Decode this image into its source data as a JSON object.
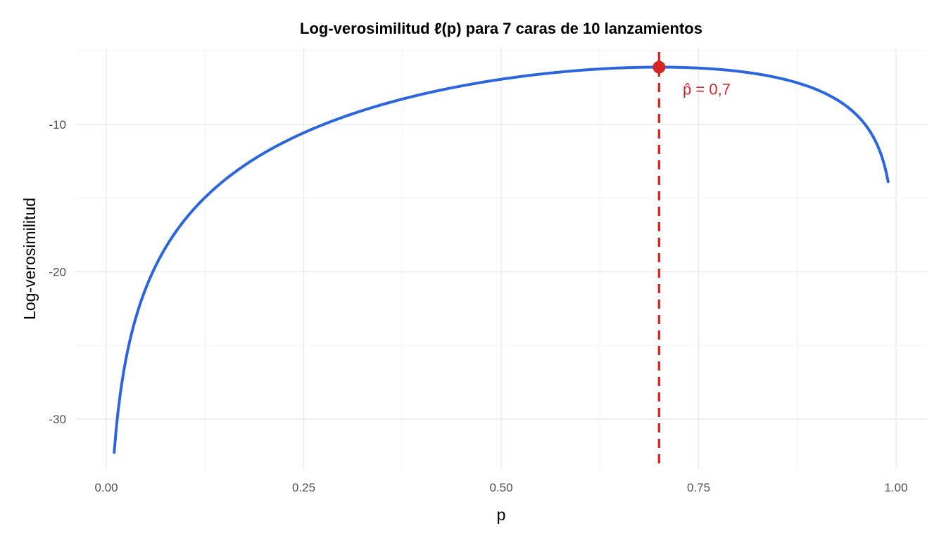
{
  "chart_data": {
    "type": "line",
    "title": "Log-verosimilitud ℓ(p) para 7 caras de 10 lanzamientos",
    "xlabel": "p",
    "ylabel": "Log-verosimilitud",
    "xlim": [
      0.0,
      1.0
    ],
    "ylim": [
      -33,
      -5
    ],
    "x_ticks": [
      0.0,
      0.25,
      0.5,
      0.75,
      1.0
    ],
    "x_tick_labels": [
      "0.00",
      "0.25",
      "0.50",
      "0.75",
      "1.00"
    ],
    "y_ticks": [
      -10,
      -20,
      -30
    ],
    "y_tick_labels": [
      "-10",
      "-20",
      "-30"
    ],
    "grid": true,
    "legend": "none",
    "series": [
      {
        "heads": 7,
        "tosses": 10,
        "x_range": [
          0.01,
          0.99
        ],
        "color": "#2b66e0"
      }
    ],
    "vline": {
      "x": 0.7,
      "color": "#d62728",
      "style": "dashed"
    },
    "max_point": {
      "x": 0.7,
      "y": -6.11,
      "color": "#d62728"
    },
    "annotation": {
      "text": "p̂ = 0,7",
      "x": 0.73,
      "y": -7.6,
      "color": "#d62728"
    }
  }
}
